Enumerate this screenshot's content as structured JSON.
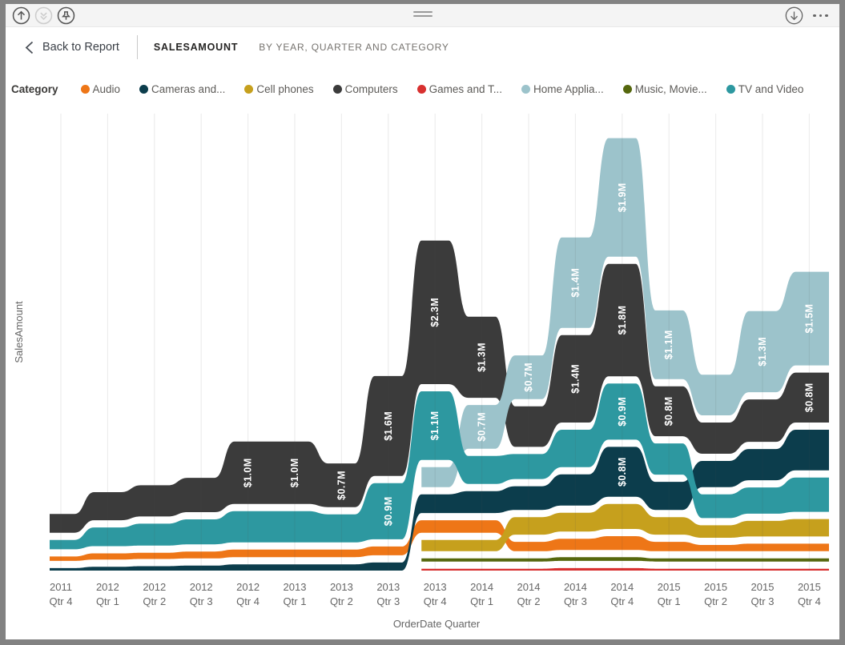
{
  "toolbar": {
    "left_icons": [
      {
        "name": "arrow-up-circle-icon",
        "enabled": true
      },
      {
        "name": "double-arrow-down-circle-icon",
        "enabled": false
      },
      {
        "name": "pin-circle-icon",
        "enabled": true
      }
    ],
    "drag_handle": "drag-handle",
    "right_icons": [
      {
        "name": "arrow-down-circle-icon",
        "enabled": true
      },
      {
        "name": "more-options-icon",
        "enabled": true
      }
    ]
  },
  "header": {
    "back_label": "Back to Report",
    "title": "SALESAMOUNT",
    "subtitle": "BY YEAR, QUARTER AND CATEGORY"
  },
  "legend": {
    "title": "Category",
    "items": [
      {
        "label": "Audio",
        "color": "#EE7617"
      },
      {
        "label": "Cameras and...",
        "color": "#0C3D4C"
      },
      {
        "label": "Cell phones",
        "color": "#C6A01D"
      },
      {
        "label": "Computers",
        "color": "#3B3B3B"
      },
      {
        "label": "Games and T...",
        "color": "#D8302F"
      },
      {
        "label": "Home Applia...",
        "color": "#9CC3CB"
      },
      {
        "label": "Music, Movie...",
        "color": "#55670D"
      },
      {
        "label": "TV and Video",
        "color": "#2D98A0"
      }
    ]
  },
  "chart_data": {
    "type": "area",
    "subtype": "ribbon",
    "title": "SalesAmount by Year, Quarter and Category",
    "xlabel": "OrderDate Quarter",
    "ylabel": "SalesAmount",
    "grid": "faint-vertical",
    "legend_position": "top",
    "value_unit": "$M",
    "categories": [
      "2011 Qtr 4",
      "2012 Qtr 1",
      "2012 Qtr 2",
      "2012 Qtr 3",
      "2012 Qtr 4",
      "2013 Qtr 1",
      "2013 Qtr 2",
      "2013 Qtr 3",
      "2013 Qtr 4",
      "2014 Qtr 1",
      "2014 Qtr 2",
      "2014 Qtr 3",
      "2014 Qtr 4",
      "2015 Qtr 1",
      "2015 Qtr 2",
      "2015 Qtr 3",
      "2015 Qtr 4"
    ],
    "series": [
      {
        "name": "Audio",
        "color": "#EE7617",
        "start": 0,
        "values": [
          0.07,
          0.1,
          0.1,
          0.11,
          0.12,
          0.12,
          0.12,
          0.14,
          0.2,
          0.2,
          0.15,
          0.18,
          0.22,
          0.15,
          0.1,
          0.12,
          0.12
        ],
        "labels": [
          "",
          "",
          "",
          "",
          "",
          "",
          "",
          "",
          "",
          "",
          "",
          "",
          "",
          "",
          "",
          "",
          ""
        ]
      },
      {
        "name": "Cameras and...",
        "color": "#0C3D4C",
        "start": 0,
        "values": [
          0.04,
          0.06,
          0.07,
          0.08,
          0.1,
          0.1,
          0.1,
          0.13,
          0.3,
          0.35,
          0.38,
          0.5,
          0.8,
          0.45,
          0.42,
          0.5,
          0.65
        ],
        "labels": [
          "",
          "",
          "",
          "",
          "",
          "",
          "",
          "",
          "",
          "",
          "",
          "",
          "$0.8M",
          "",
          "",
          "",
          ""
        ]
      },
      {
        "name": "Cell phones",
        "color": "#C6A01D",
        "start": 8,
        "values": [
          0.18,
          0.18,
          0.28,
          0.3,
          0.4,
          0.28,
          0.2,
          0.25,
          0.28
        ],
        "labels": [
          "",
          "",
          "",
          "",
          "",
          "",
          "",
          "",
          ""
        ]
      },
      {
        "name": "Computers",
        "color": "#3B3B3B",
        "start": 0,
        "values": [
          0.3,
          0.45,
          0.5,
          0.55,
          1.0,
          1.0,
          0.7,
          1.6,
          2.3,
          1.3,
          0.65,
          1.4,
          1.8,
          0.8,
          0.5,
          0.68,
          0.8
        ],
        "labels": [
          "",
          "",
          "",
          "",
          "$1.0M",
          "$1.0M",
          "$0.7M",
          "$1.6M",
          "$2.3M",
          "$1.3M",
          "",
          "$1.4M",
          "$1.8M",
          "$0.8M",
          "",
          "",
          "$0.8M"
        ]
      },
      {
        "name": "Games and T...",
        "color": "#D8302F",
        "start": 8,
        "values": [
          0.03,
          0.03,
          0.03,
          0.04,
          0.04,
          0.03,
          0.03,
          0.03,
          0.03
        ],
        "labels": [
          "",
          "",
          "",
          "",
          "",
          "",
          "",
          "",
          ""
        ]
      },
      {
        "name": "Home Applia...",
        "color": "#9CC3CB",
        "start": 8,
        "values": [
          0.32,
          0.7,
          0.7,
          1.45,
          1.9,
          1.1,
          0.65,
          1.3,
          1.5
        ],
        "labels": [
          "",
          "$0.7M",
          "$0.7M",
          "$1.4M",
          "$1.9M",
          "$1.1M",
          "",
          "$1.3M",
          "$1.5M"
        ]
      },
      {
        "name": "Music, Movie...",
        "color": "#55670D",
        "start": 8,
        "values": [
          0.05,
          0.05,
          0.05,
          0.06,
          0.06,
          0.05,
          0.05,
          0.05,
          0.05
        ],
        "labels": [
          "",
          "",
          "",
          "",
          "",
          "",
          "",
          "",
          ""
        ]
      },
      {
        "name": "TV and Video",
        "color": "#2D98A0",
        "start": 0,
        "values": [
          0.15,
          0.3,
          0.35,
          0.4,
          0.5,
          0.5,
          0.45,
          0.9,
          1.1,
          0.45,
          0.4,
          0.6,
          0.9,
          0.5,
          0.38,
          0.42,
          0.55
        ],
        "labels": [
          "",
          "",
          "",
          "",
          "",
          "",
          "",
          "$0.9M",
          "$1.1M",
          "",
          "",
          "",
          "$0.9M",
          "",
          "",
          "",
          ""
        ]
      }
    ]
  }
}
